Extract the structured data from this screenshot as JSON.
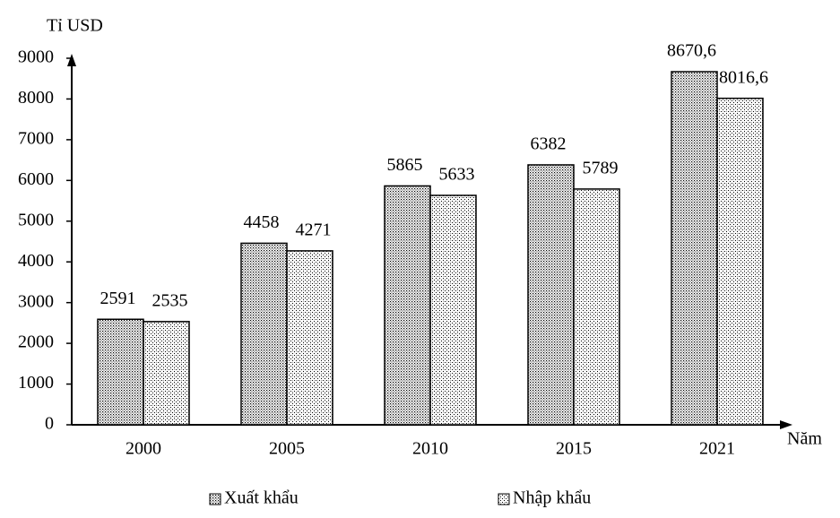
{
  "chart_data": {
    "type": "bar",
    "y_label": "Tỉ USD",
    "x_label": "Năm",
    "categories": [
      "2000",
      "2005",
      "2010",
      "2015",
      "2021"
    ],
    "series": [
      {
        "name": "Xuất khẩu",
        "color": "#000000",
        "pattern": "dots",
        "values": [
          2591,
          4458,
          5865,
          6382,
          8670.6
        ],
        "value_labels": [
          "2591",
          "4458",
          "5865",
          "6382",
          "8670,6"
        ]
      },
      {
        "name": "Nhập khẩu",
        "color": "#000000",
        "pattern": "checks",
        "values": [
          2535,
          4271,
          5633,
          5789,
          8016.6
        ],
        "value_labels": [
          "2535",
          "4271",
          "5633",
          "5789",
          "8016,6"
        ]
      }
    ],
    "ylim": [
      0,
      9000
    ],
    "yticks": [
      0,
      1000,
      2000,
      3000,
      4000,
      5000,
      6000,
      7000,
      8000,
      9000
    ],
    "grid": false,
    "legend": "bottom"
  }
}
